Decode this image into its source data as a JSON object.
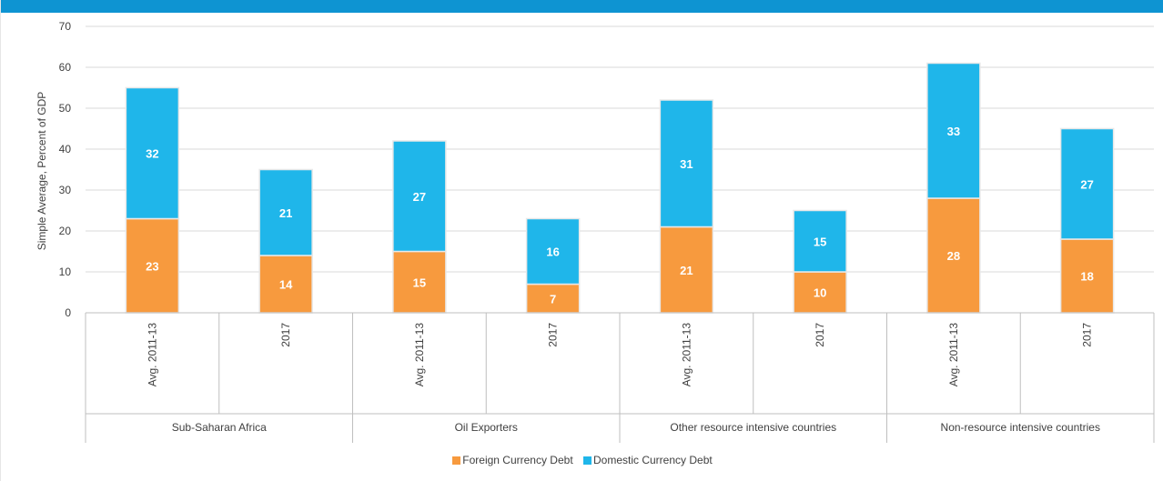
{
  "chart_data": {
    "type": "bar",
    "stacked": true,
    "ylabel": "Simple Average, Percent of GDP",
    "ylim": [
      0,
      70
    ],
    "yticks": [
      0,
      10,
      20,
      30,
      40,
      50,
      60,
      70
    ],
    "grid": true,
    "legend_position": "bottom",
    "groups": [
      {
        "name": "Sub-Saharan Africa",
        "categories": [
          "Avg. 2011-13",
          "2017"
        ]
      },
      {
        "name": "Oil Exporters",
        "categories": [
          "Avg. 2011-13",
          "2017"
        ]
      },
      {
        "name": "Other resource intensive countries",
        "categories": [
          "Avg. 2011-13",
          "2017"
        ]
      },
      {
        "name": "Non-resource intensive countries",
        "categories": [
          "Avg. 2011-13",
          "2017"
        ]
      }
    ],
    "series": [
      {
        "name": "Foreign Currency Debt",
        "color": "#f79a3e",
        "values": [
          23,
          14,
          15,
          7,
          21,
          10,
          28,
          18
        ],
        "labels": [
          "23",
          "14",
          "15",
          "7",
          "21",
          "10",
          "28",
          "18"
        ]
      },
      {
        "name": "Domestic Currency Debt",
        "color": "#1fb6ea",
        "values": [
          32,
          21,
          27,
          16,
          31,
          15,
          33,
          27
        ],
        "labels": [
          "32",
          "21",
          "27",
          "16",
          "31",
          "15",
          "33",
          "27"
        ]
      }
    ]
  }
}
